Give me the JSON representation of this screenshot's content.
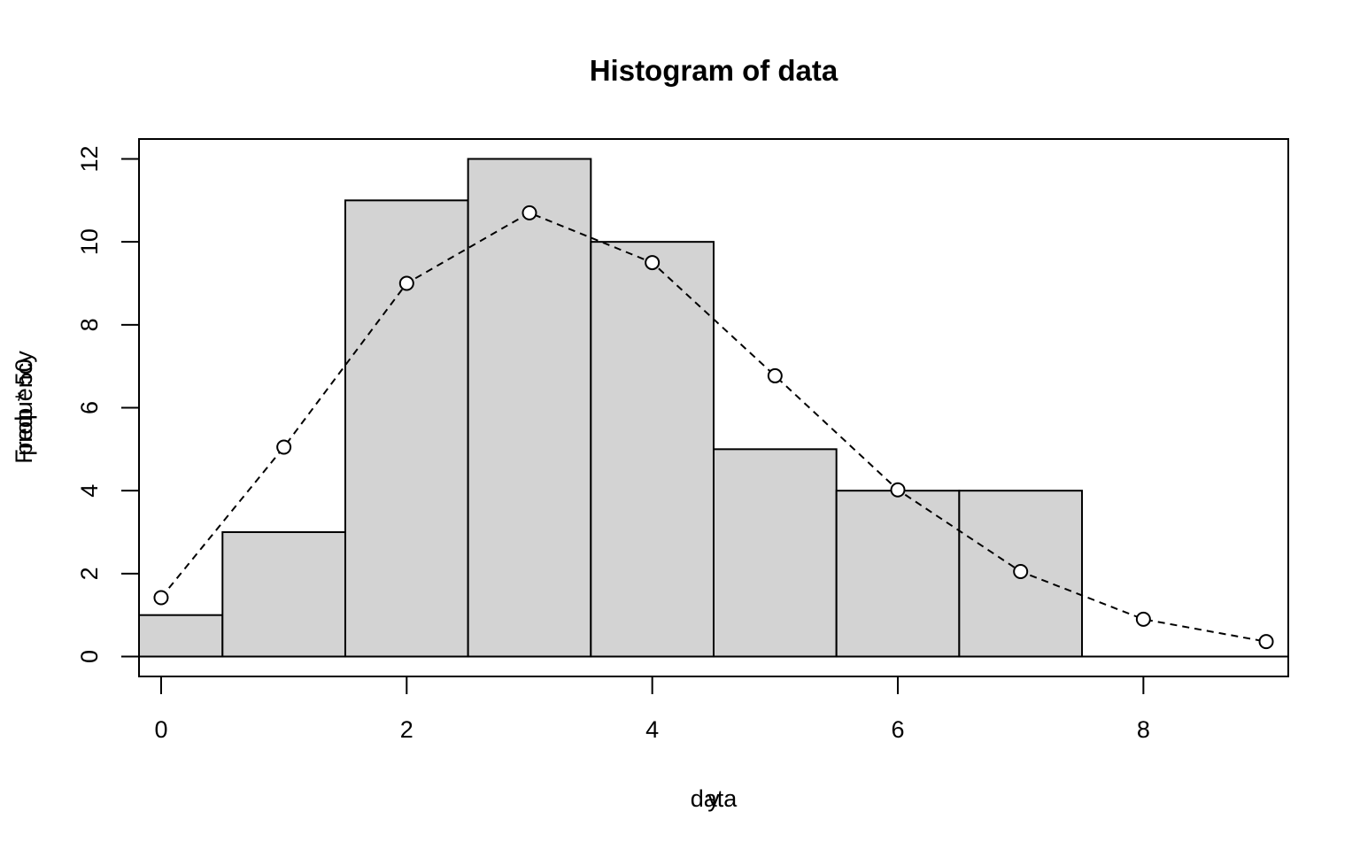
{
  "chart_data": {
    "type": "bar",
    "title": "Histogram of data",
    "xlabels": [
      "data",
      "y"
    ],
    "ylabels": [
      "Frequency",
      "prob * 50"
    ],
    "xlim": [
      -0.18,
      9.18
    ],
    "ylim": [
      -0.48,
      12.48
    ],
    "xticks": [
      0,
      2,
      4,
      6,
      8
    ],
    "yticks": [
      0,
      2,
      4,
      6,
      8,
      10,
      12
    ],
    "bins": [
      {
        "x0": -0.5,
        "x1": 0.5,
        "count": 1
      },
      {
        "x0": 0.5,
        "x1": 1.5,
        "count": 3
      },
      {
        "x0": 1.5,
        "x1": 2.5,
        "count": 11
      },
      {
        "x0": 2.5,
        "x1": 3.5,
        "count": 12
      },
      {
        "x0": 3.5,
        "x1": 4.5,
        "count": 10
      },
      {
        "x0": 4.5,
        "x1": 5.5,
        "count": 5
      },
      {
        "x0": 5.5,
        "x1": 6.5,
        "count": 4
      },
      {
        "x0": 6.5,
        "x1": 7.5,
        "count": 4
      },
      {
        "x0": 7.5,
        "x1": 8.5,
        "count": 0
      },
      {
        "x0": 8.5,
        "x1": 9.5,
        "count": 0
      }
    ],
    "series": [
      {
        "style": "dashed line with open circles",
        "x": [
          0,
          1,
          2,
          3,
          4,
          5,
          6,
          7,
          8,
          9
        ],
        "y": [
          1.42,
          5.05,
          9.0,
          10.7,
          9.5,
          6.77,
          4.02,
          2.05,
          0.9,
          0.36
        ]
      }
    ],
    "bar_color": "#d3d3d3",
    "grid": false,
    "legend": "none"
  }
}
